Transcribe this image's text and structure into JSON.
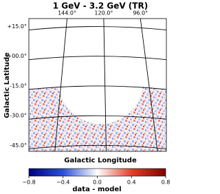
{
  "chart_data": {
    "type": "skymap",
    "title": "1 GeV - 3.2 GeV (TR)",
    "xlabel": "Galactic Longitude",
    "ylabel": "Galactic Latitude",
    "xlim": [
      169,
      79
    ],
    "xticks": [
      {
        "value": 144,
        "label": "144.0°"
      },
      {
        "value": 120,
        "label": "120.0°"
      },
      {
        "value": 96,
        "label": "96.0°"
      }
    ],
    "ylim": [
      -48,
      19
    ],
    "yticks": [
      {
        "value": 15,
        "label": "+15.0°"
      },
      {
        "value": 0,
        "label": "+00.0°"
      },
      {
        "value": -15,
        "label": "-15.0°"
      },
      {
        "value": -30,
        "label": "-30.0°"
      },
      {
        "value": -45,
        "label": "-45.0°"
      }
    ],
    "grid": true,
    "colorbar": {
      "label": "data - model",
      "lim": [
        -0.8,
        0.8
      ],
      "ticks": [
        {
          "value": -0.8,
          "label": "−0.8"
        },
        {
          "value": -0.4,
          "label": "−0.4"
        },
        {
          "value": 0.0,
          "label": "0.0"
        },
        0.4,
        0.8
      ],
      "colors": [
        "#00007f",
        "#2b4fd6",
        "#ffffff",
        "#e0402a",
        "#7f0000"
      ]
    }
  }
}
